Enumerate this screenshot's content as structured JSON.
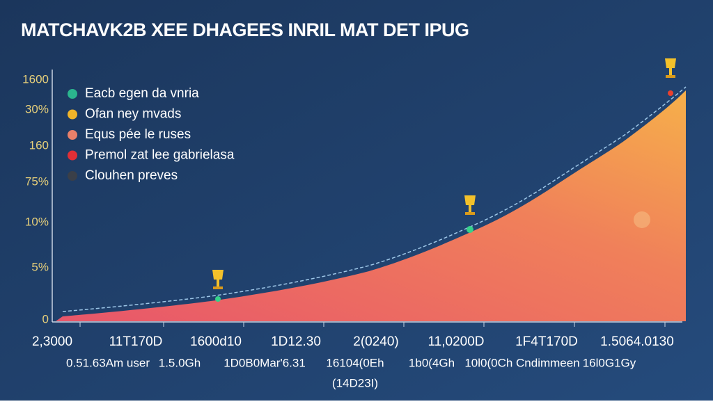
{
  "title": "MATCHAVK2B XEE DHAGEES INRIL MAT DET IPUG",
  "legend": [
    "Eacb egen da vnria",
    "Ofan ney mvads",
    "Equs pée le ruses",
    "Premol zat lee gabrielasa",
    "Clouhen preves"
  ],
  "y_labels": [
    "1600",
    "30%",
    "160",
    "75%",
    "10%",
    "5%",
    "0"
  ],
  "x_labels": [
    "2,3000",
    "11T170D",
    "1600d10",
    "1D12.30",
    "2(0240)",
    "11,0200D",
    "1F4T170D",
    "1.5064.0130"
  ],
  "x_sublabels": [
    "0.51.63Am user",
    "1.5.0Gh",
    "1D0B0Mar'6.31",
    "16104(0Eh",
    "1b0(4Gh",
    "10l0(0Ch Cndimmeen",
    "16l0G1Gy"
  ],
  "x_footnote": "(14D23I)"
}
